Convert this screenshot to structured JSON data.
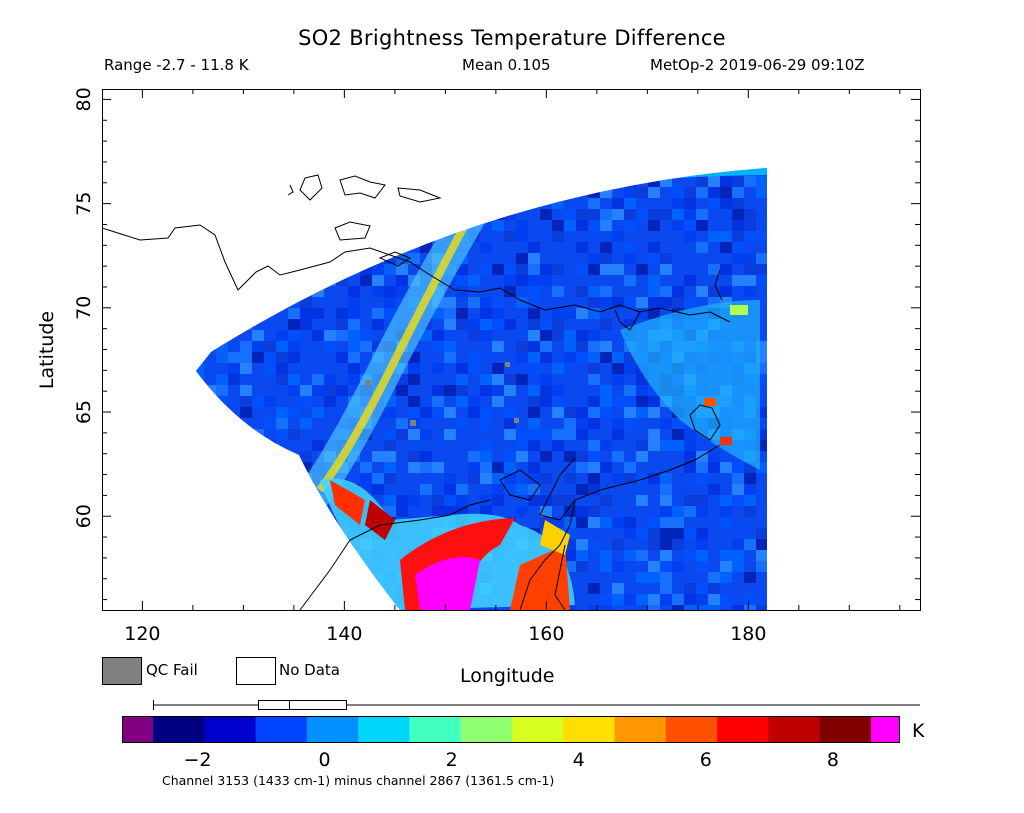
{
  "title": "SO2 Brightness Temperature Difference",
  "subtitle": {
    "range": "Range -2.7 - 11.8 K",
    "mean": "Mean 0.105",
    "satellite_time": "MetOp-2 2019-06-29 09:10Z"
  },
  "axes": {
    "xlabel": "Longitude",
    "ylabel": "Latitude",
    "x_ticks": [
      "120",
      "140",
      "160",
      "180"
    ],
    "y_ticks": [
      "60",
      "65",
      "70",
      "75",
      "80"
    ],
    "x_range": [
      116,
      197
    ],
    "y_range": [
      55.5,
      80.5
    ]
  },
  "legend": {
    "qc_fail": "QC Fail",
    "no_data": "No Data",
    "qc_fail_color": "#808080",
    "no_data_color": "#ffffff"
  },
  "colorbar": {
    "unit": "K",
    "ticks": [
      "−2",
      "0",
      "2",
      "4",
      "6",
      "8"
    ],
    "range": [
      -2.7,
      8.6
    ],
    "under_color": "#800080",
    "over_color": "#ff00ff",
    "colors": [
      "#000080",
      "#0000cd",
      "#0044ff",
      "#0090ff",
      "#00d6ff",
      "#40ffc0",
      "#90ff70",
      "#d6ff20",
      "#ffe000",
      "#ff9800",
      "#ff5000",
      "#ff0000",
      "#c00000",
      "#800000"
    ]
  },
  "footer": "Channel 3153 (1433 cm-1) minus channel 2867 (1361.5 cm-1)",
  "chart_data": {
    "type": "heatmap",
    "title": "SO2 Brightness Temperature Difference",
    "xlabel": "Longitude",
    "ylabel": "Latitude",
    "xlim": [
      116,
      197
    ],
    "ylim": [
      55.5,
      80.5
    ],
    "value_unit": "K",
    "value_range": [
      -2.7,
      11.8
    ],
    "mean": 0.105,
    "swath_corners_lon_lat": [
      [
        126,
        66.8
      ],
      [
        183.5,
        76.4
      ],
      [
        183.5,
        55.5
      ],
      [
        147,
        55.5
      ]
    ],
    "grid": false
  }
}
